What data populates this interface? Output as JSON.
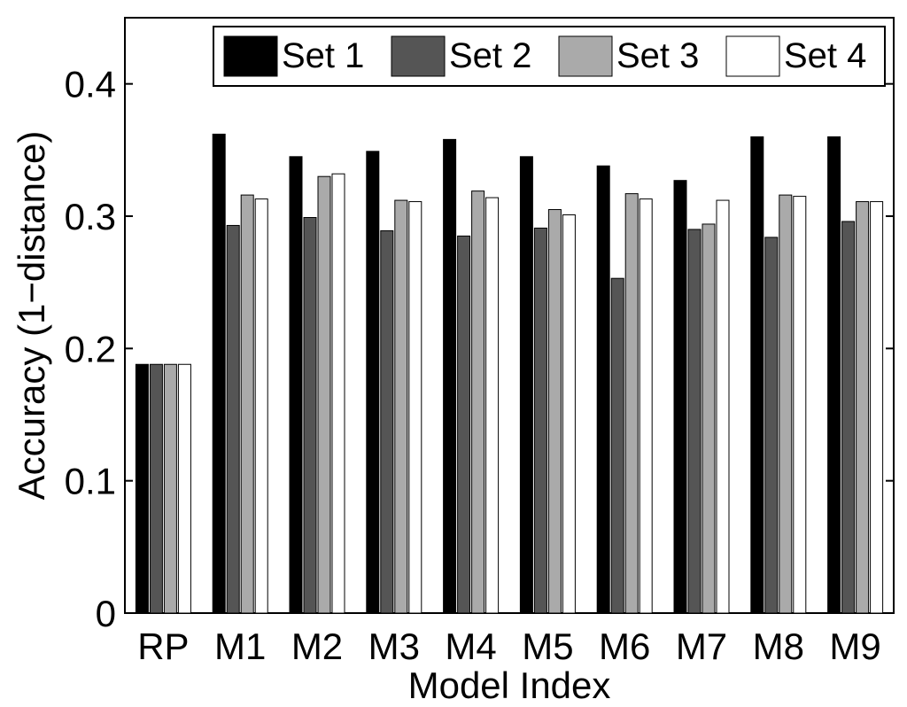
{
  "chart_data": {
    "type": "bar",
    "xlabel": "Model Index",
    "ylabel": "Accuracy (1−distance)",
    "categories": [
      "RP",
      "M1",
      "M2",
      "M3",
      "M4",
      "M5",
      "M6",
      "M7",
      "M8",
      "M9"
    ],
    "series": [
      {
        "name": "Set 1",
        "color": "#000000",
        "values": [
          0.188,
          0.362,
          0.345,
          0.349,
          0.358,
          0.345,
          0.338,
          0.327,
          0.36,
          0.36
        ]
      },
      {
        "name": "Set 2",
        "color": "#555555",
        "values": [
          0.188,
          0.293,
          0.299,
          0.289,
          0.285,
          0.291,
          0.253,
          0.29,
          0.284,
          0.296
        ]
      },
      {
        "name": "Set 3",
        "color": "#aaaaaa",
        "values": [
          0.188,
          0.316,
          0.33,
          0.312,
          0.319,
          0.305,
          0.317,
          0.294,
          0.316,
          0.311
        ]
      },
      {
        "name": "Set 4",
        "color": "#ffffff",
        "values": [
          0.188,
          0.313,
          0.332,
          0.311,
          0.314,
          0.301,
          0.313,
          0.312,
          0.315,
          0.311
        ]
      }
    ],
    "ylim": [
      0,
      0.45
    ],
    "yticks": [
      0,
      0.1,
      0.2,
      0.3,
      0.4
    ],
    "legend": "top-right",
    "grid": false
  }
}
